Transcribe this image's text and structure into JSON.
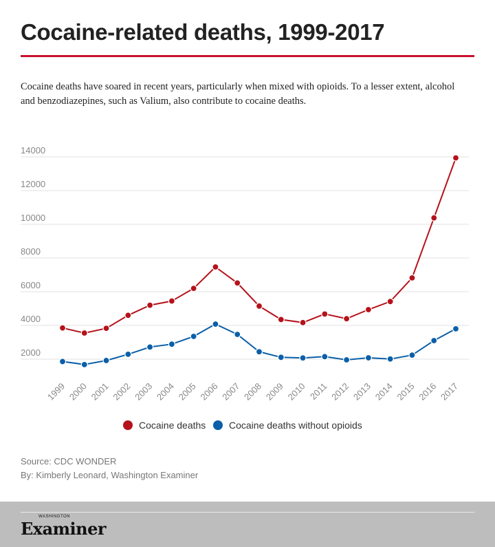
{
  "title": "Cocaine-related deaths, 1999-2017",
  "subtitle": "Cocaine deaths have soared in recent years, particularly when mixed with opioids. To a lesser extent, alcohol and benzodiazepines, such as Valium, also contribute to cocaine deaths.",
  "source": "Source: CDC WONDER",
  "byline": "By: Kimberly Leonard, Washington Examiner",
  "logo": {
    "small": "WASHINGTON",
    "name": "Examiner"
  },
  "colors": {
    "accent": "#c8102e",
    "series1": "#b5121b",
    "series2": "#0a5fa8"
  },
  "chart_data": {
    "type": "line",
    "title": "",
    "xlabel": "",
    "ylabel": "",
    "grid": true,
    "legend_position": "bottom",
    "ylim": [
      1000,
      14000
    ],
    "yticks": [
      2000,
      4000,
      6000,
      8000,
      10000,
      12000,
      14000
    ],
    "categories": [
      "1999",
      "2000",
      "2001",
      "2002",
      "2003",
      "2004",
      "2005",
      "2006",
      "2007",
      "2008",
      "2009",
      "2010",
      "2011",
      "2012",
      "2013",
      "2014",
      "2015",
      "2016",
      "2017"
    ],
    "series": [
      {
        "name": "Cocaine deaths",
        "color": "#b5121b",
        "values": [
          3850,
          3550,
          3830,
          4600,
          5200,
          5450,
          6200,
          7470,
          6520,
          5150,
          4350,
          4170,
          4680,
          4400,
          4940,
          5420,
          6820,
          10380,
          13940
        ]
      },
      {
        "name": "Cocaine deaths without opioids",
        "color": "#0a5fa8",
        "values": [
          1860,
          1680,
          1920,
          2290,
          2720,
          2890,
          3350,
          4080,
          3470,
          2440,
          2110,
          2070,
          2150,
          1960,
          2080,
          2010,
          2240,
          3100,
          3800
        ]
      }
    ]
  }
}
